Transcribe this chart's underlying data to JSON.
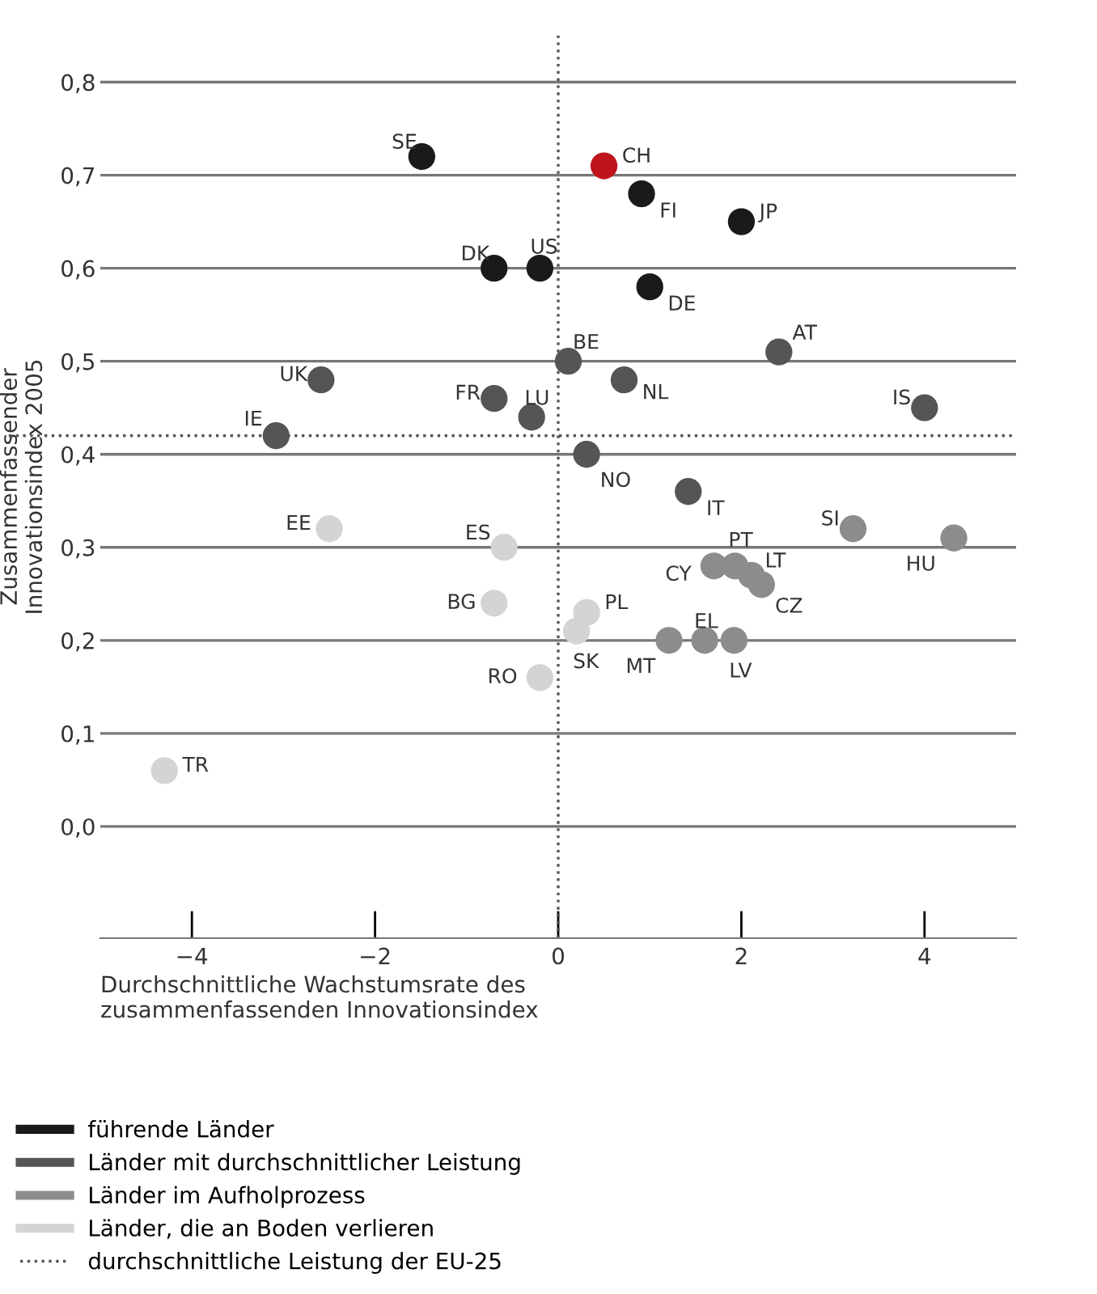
{
  "chart_data": {
    "type": "scatter",
    "xlabel": "Durchschnittliche Wachstumsrate des\nzusammenfassenden Innovationsindex",
    "ylabel": "Zusammenfassender\nInnovationsindex 2005",
    "xlim": [
      -5,
      5
    ],
    "ylim": [
      -0.12,
      0.85
    ],
    "xticks": [
      {
        "value": -4,
        "label": "−4"
      },
      {
        "value": -2,
        "label": "−2"
      },
      0,
      2,
      4
    ],
    "yticks": [
      {
        "value": 0.0,
        "label": "0,0"
      },
      {
        "value": 0.1,
        "label": "0,1"
      },
      {
        "value": 0.2,
        "label": "0,2"
      },
      {
        "value": 0.3,
        "label": "0,3"
      },
      {
        "value": 0.4,
        "label": "0,4"
      },
      {
        "value": 0.5,
        "label": "0,5"
      },
      {
        "value": 0.6,
        "label": "0,6"
      },
      {
        "value": 0.7,
        "label": "0,7"
      },
      {
        "value": 0.8,
        "label": "0,8"
      }
    ],
    "grid": "y",
    "legend": "bottom",
    "marker": "circle",
    "series": [
      {
        "name": "führende Länder",
        "color": "#1a1a1a",
        "x": [
          -1.49,
          0.91,
          2.0,
          -0.7,
          -0.2,
          1.0
        ],
        "values": [
          0.72,
          0.68,
          0.65,
          0.6,
          0.6,
          0.58
        ]
      },
      {
        "color": "#c0141c",
        "x": [
          0.5
        ],
        "values": [
          0.71
        ]
      },
      {
        "name": "Länder mit durchschnittlicher Leistung",
        "color": "#555555",
        "x": [
          0.11,
          2.41,
          -2.59,
          0.72,
          -0.7,
          -0.29,
          4.0,
          -3.08,
          0.31,
          1.42
        ],
        "values": [
          0.5,
          0.51,
          0.48,
          0.48,
          0.46,
          0.44,
          0.45,
          0.42,
          0.4,
          0.36
        ]
      },
      {
        "name": "Länder im Aufholprozess",
        "color": "#8c8c8c",
        "x": [
          3.22,
          4.32,
          1.7,
          1.93,
          2.11,
          2.22,
          1.21,
          1.6,
          1.92
        ],
        "values": [
          0.32,
          0.31,
          0.28,
          0.28,
          0.27,
          0.26,
          0.2,
          0.2,
          0.2
        ]
      },
      {
        "name": "Länder, die an Boden verlieren",
        "color": "#d4d4d4",
        "x": [
          -2.5,
          -0.59,
          -0.7,
          0.31,
          0.2,
          -0.2,
          -4.3
        ],
        "values": [
          0.32,
          0.3,
          0.24,
          0.23,
          0.21,
          0.16,
          0.06
        ]
      }
    ],
    "ref_lines": [
      {
        "axis": "x",
        "value": 0,
        "label": "durchschnittliche Leistung der EU-25",
        "color": "#555555",
        "line_style": "dotted"
      },
      {
        "axis": "y",
        "value": 0.42,
        "color": "#555555",
        "line_style": "dotted"
      }
    ],
    "annotations": [
      {
        "text": "SE",
        "x": -1.49,
        "y": 0.72
      },
      {
        "text": "FI",
        "x": 0.91,
        "y": 0.68
      },
      {
        "text": "JP",
        "x": 2.0,
        "y": 0.65
      },
      {
        "text": "DK",
        "x": -0.7,
        "y": 0.6
      },
      {
        "text": "US",
        "x": -0.2,
        "y": 0.6
      },
      {
        "text": "DE",
        "x": 1.0,
        "y": 0.58
      },
      {
        "text": "CH",
        "x": 0.5,
        "y": 0.71
      },
      {
        "text": "BE",
        "x": 0.11,
        "y": 0.5
      },
      {
        "text": "AT",
        "x": 2.41,
        "y": 0.51
      },
      {
        "text": "UK",
        "x": -2.59,
        "y": 0.48
      },
      {
        "text": "NL",
        "x": 0.72,
        "y": 0.48
      },
      {
        "text": "FR",
        "x": -0.7,
        "y": 0.46
      },
      {
        "text": "LU",
        "x": -0.29,
        "y": 0.44
      },
      {
        "text": "IS",
        "x": 4.0,
        "y": 0.45
      },
      {
        "text": "IE",
        "x": -3.08,
        "y": 0.42
      },
      {
        "text": "NO",
        "x": 0.31,
        "y": 0.4
      },
      {
        "text": "IT",
        "x": 1.42,
        "y": 0.36
      },
      {
        "text": "SI",
        "x": 3.22,
        "y": 0.32
      },
      {
        "text": "HU",
        "x": 4.32,
        "y": 0.31
      },
      {
        "text": "CY",
        "x": 1.7,
        "y": 0.28
      },
      {
        "text": "PT",
        "x": 1.93,
        "y": 0.28
      },
      {
        "text": "LT",
        "x": 2.11,
        "y": 0.27
      },
      {
        "text": "CZ",
        "x": 2.22,
        "y": 0.26
      },
      {
        "text": "MT",
        "x": 1.21,
        "y": 0.2
      },
      {
        "text": "EL",
        "x": 1.6,
        "y": 0.2
      },
      {
        "text": "LV",
        "x": 1.92,
        "y": 0.2
      },
      {
        "text": "EE",
        "x": -2.5,
        "y": 0.32
      },
      {
        "text": "ES",
        "x": -0.59,
        "y": 0.3
      },
      {
        "text": "BG",
        "x": -0.7,
        "y": 0.24
      },
      {
        "text": "PL",
        "x": 0.31,
        "y": 0.23
      },
      {
        "text": "SK",
        "x": 0.2,
        "y": 0.21
      },
      {
        "text": "RO",
        "x": -0.2,
        "y": 0.16
      },
      {
        "text": "TR",
        "x": -4.3,
        "y": 0.06
      }
    ]
  }
}
